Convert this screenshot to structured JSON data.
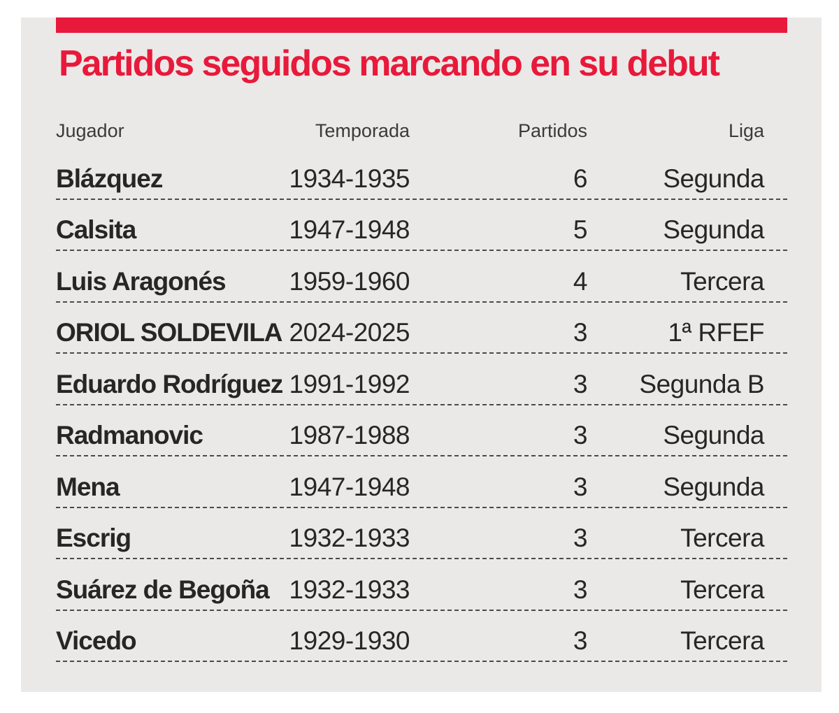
{
  "title": "Partidos seguidos marcando en su debut",
  "headers": {
    "player": "Jugador",
    "season": "Temporada",
    "games": "Partidos",
    "league": "Liga"
  },
  "rows": [
    {
      "player": "Blázquez",
      "season": "1934-1935",
      "games": "6",
      "league": "Segunda"
    },
    {
      "player": "Calsita",
      "season": "1947-1948",
      "games": "5",
      "league": "Segunda"
    },
    {
      "player": "Luis Aragonés",
      "season": "1959-1960",
      "games": "4",
      "league": "Tercera"
    },
    {
      "player": "ORIOL SOLDEVILA",
      "season": "2024-2025",
      "games": "3",
      "league": "1ª RFEF"
    },
    {
      "player": "Eduardo Rodríguez",
      "season": "1991-1992",
      "games": "3",
      "league": "Segunda B"
    },
    {
      "player": "Radmanovic",
      "season": "1987-1988",
      "games": "3",
      "league": "Segunda"
    },
    {
      "player": "Mena",
      "season": "1947-1948",
      "games": "3",
      "league": "Segunda"
    },
    {
      "player": "Escrig",
      "season": "1932-1933",
      "games": "3",
      "league": "Tercera"
    },
    {
      "player": "Suárez de Begoña",
      "season": "1932-1933",
      "games": "3",
      "league": "Tercera"
    },
    {
      "player": "Vicedo",
      "season": "1929-1930",
      "games": "3",
      "league": "Tercera"
    }
  ],
  "colors": {
    "accent": "#e8193a",
    "panel_background": "#ebe9e8",
    "text": "#262626"
  }
}
